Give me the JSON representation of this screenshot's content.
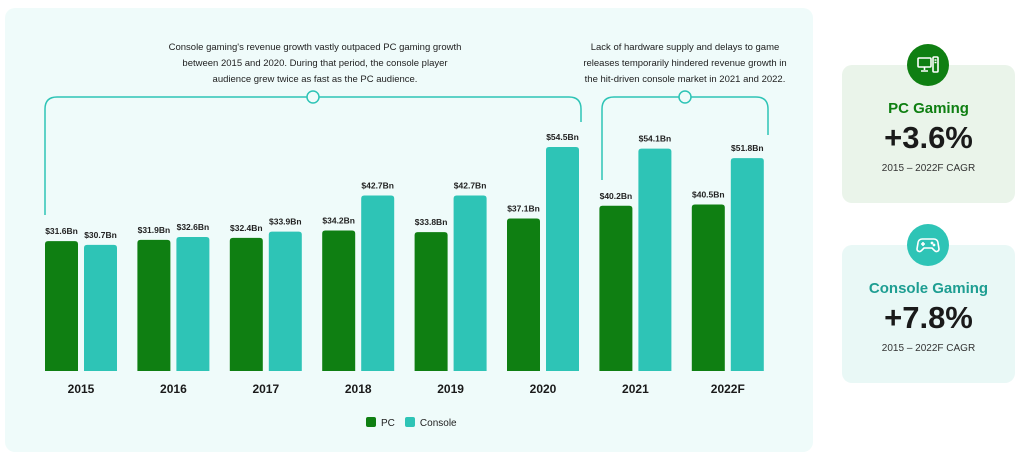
{
  "chart_data": {
    "type": "bar",
    "categories": [
      "2015",
      "2016",
      "2017",
      "2018",
      "2019",
      "2020",
      "2021",
      "2022F"
    ],
    "series": [
      {
        "name": "PC",
        "color": "#0f7f12",
        "values": [
          31.6,
          31.9,
          32.4,
          34.2,
          33.8,
          37.1,
          40.2,
          40.5
        ],
        "labels": [
          "$31.6Bn",
          "$31.9Bn",
          "$32.4Bn",
          "$34.2Bn",
          "$33.8Bn",
          "$37.1Bn",
          "$40.2Bn",
          "$40.5Bn"
        ]
      },
      {
        "name": "Console",
        "color": "#2ec4b6",
        "values": [
          30.7,
          32.6,
          33.9,
          42.7,
          42.7,
          54.5,
          54.1,
          51.8
        ],
        "labels": [
          "$30.7Bn",
          "$32.6Bn",
          "$33.9Bn",
          "$42.7Bn",
          "$42.7Bn",
          "$54.5Bn",
          "$54.1Bn",
          "$51.8Bn"
        ]
      }
    ],
    "unit": "USD billions",
    "ylim": [
      0,
      60
    ],
    "grid": false,
    "legend": "bottom-center",
    "annotations": [
      "Console gaming's revenue growth vastly outpaced PC gaming growth between 2015 and 2020. During that period, the console player audience grew twice as fast as the PC audience.",
      "Lack of hardware supply and delays to game releases temporarily hindered revenue growth in the hit-driven console market in 2021 and 2022."
    ]
  },
  "notes": {
    "left": [
      "Console gaming's revenue growth vastly outpaced PC gaming growth",
      "between 2015 and 2020. During that period, the console player",
      "audience grew twice as fast as the PC audience."
    ],
    "right": [
      "Lack of hardware supply and delays to game",
      "releases temporarily hindered revenue growth in",
      "the hit-driven console market in 2021 and 2022."
    ]
  },
  "legend": {
    "pc": "PC",
    "console": "Console"
  },
  "cards": {
    "pc": {
      "title": "PC Gaming",
      "value": "+3.6%",
      "subtitle": "2015 – 2022F CAGR",
      "icon": "desktop-computer-icon",
      "color": "#0f7f12"
    },
    "console": {
      "title": "Console Gaming",
      "value": "+7.8%",
      "subtitle": "2015 – 2022F CAGR",
      "icon": "gamepad-icon",
      "color": "#2ec4b6"
    }
  }
}
